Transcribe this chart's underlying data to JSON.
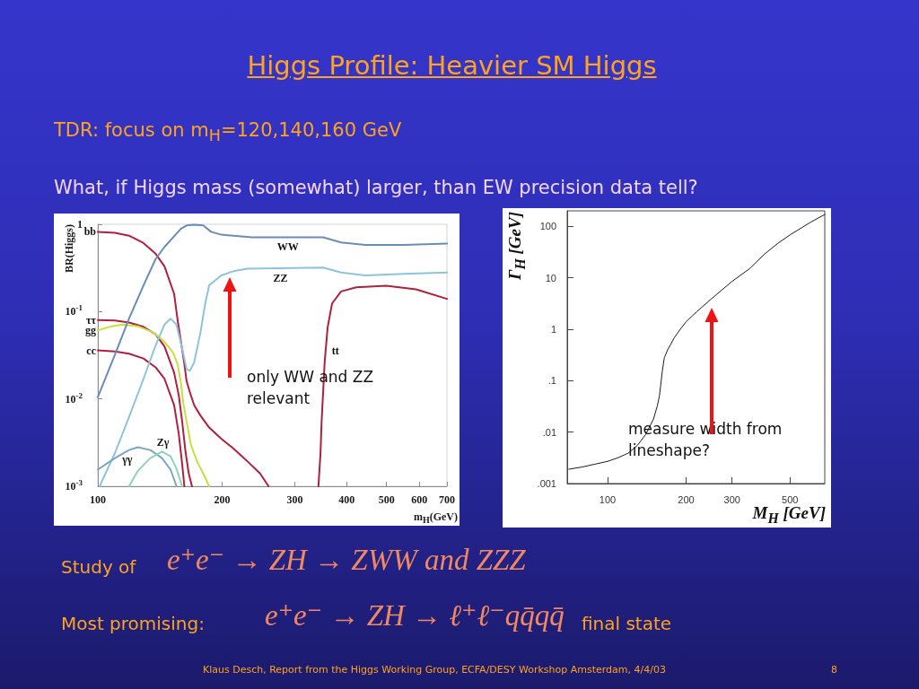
{
  "chart_data": [
    {
      "type": "line",
      "title": "Higgs Profile: Heavier SM Higgs",
      "subtitle": "TDR: focus on m$_{H}$=120,140,160 GeV",
      "xlabel": "m$_{H}$(GeV)",
      "ylabel": "BR(Higgs)",
      "log": "xy",
      "xlim": [
        100,
        700
      ],
      "ylim": [
        0.001,
        1
      ],
      "xticks": [
        100,
        200,
        300,
        400,
        500,
        600,
        700
      ],
      "yticks": [
        {
          "value": 0.001,
          "label": "10$^{-3}$"
        },
        {
          "value": 0.01,
          "label": "10$^{-2}$"
        },
        {
          "value": 0.1,
          "label": "10$^{-1}$"
        },
        1
      ],
      "series": [
        {
          "name": "bb",
          "color": "#b0203c",
          "x": [
            100,
            110,
            119,
            129,
            138,
            145,
            153,
            156,
            159,
            162,
            164,
            167,
            171,
            177,
            186,
            199,
            213,
            231,
            247,
            259
          ],
          "values": [
            0.82,
            0.8,
            0.74,
            0.61,
            0.46,
            0.33,
            0.16,
            0.08,
            0.045,
            0.025,
            0.016,
            0.012,
            0.0085,
            0.0065,
            0.0047,
            0.0035,
            0.0027,
            0.0019,
            0.0014,
            0.001
          ]
        },
        {
          "name": "ττ",
          "color": "#b0203c",
          "x": [
            100,
            110,
            119,
            129,
            138,
            145,
            153,
            157,
            160,
            163,
            166,
            169
          ],
          "values": [
            0.08,
            0.079,
            0.075,
            0.067,
            0.055,
            0.04,
            0.02,
            0.011,
            0.0055,
            0.0025,
            0.0014,
            0.001
          ]
        },
        {
          "name": "gg",
          "color": "#c8e03c",
          "x": [
            100,
            108,
            115,
            125,
            136,
            145,
            152,
            156,
            159,
            161,
            164,
            168,
            174,
            180,
            186
          ],
          "values": [
            0.061,
            0.068,
            0.071,
            0.068,
            0.058,
            0.045,
            0.034,
            0.025,
            0.015,
            0.009,
            0.0055,
            0.003,
            0.0019,
            0.0014,
            0.001
          ]
        },
        {
          "name": "cc",
          "color": "#b0203c",
          "x": [
            100,
            110,
            119,
            129,
            138,
            145,
            153,
            157,
            160,
            162
          ],
          "values": [
            0.036,
            0.035,
            0.033,
            0.029,
            0.023,
            0.017,
            0.0085,
            0.004,
            0.0018,
            0.001
          ]
        },
        {
          "name": "WW",
          "color": "#6a8cb8",
          "x": [
            100,
            110,
            119,
            129,
            138,
            145,
            153,
            159,
            164,
            171,
            180,
            188,
            199,
            236,
            351,
            388,
            444,
            551,
            700
          ],
          "values": [
            0.0105,
            0.032,
            0.083,
            0.2,
            0.4,
            0.55,
            0.73,
            0.89,
            0.97,
            0.99,
            0.97,
            0.82,
            0.76,
            0.71,
            0.71,
            0.62,
            0.58,
            0.58,
            0.6
          ]
        },
        {
          "name": "ZZ",
          "color": "#8cc4de",
          "x": [
            101,
            110,
            119,
            129,
            138,
            145,
            150,
            155,
            160,
            164,
            167,
            171,
            177,
            182,
            186,
            199,
            213,
            230,
            351,
            388,
            444,
            550,
            700
          ],
          "values": [
            0.001,
            0.0024,
            0.0062,
            0.017,
            0.041,
            0.071,
            0.083,
            0.071,
            0.038,
            0.022,
            0.021,
            0.026,
            0.056,
            0.124,
            0.2,
            0.26,
            0.29,
            0.31,
            0.32,
            0.28,
            0.26,
            0.27,
            0.28
          ]
        },
        {
          "name": "tt",
          "color": "#b0203c",
          "x": [
            342,
            346,
            348,
            354,
            360,
            369,
            388,
            422,
            499,
            589,
            700
          ],
          "values": [
            0.001,
            0.0024,
            0.0053,
            0.026,
            0.066,
            0.124,
            0.17,
            0.19,
            0.198,
            0.18,
            0.14
          ]
        },
        {
          "name": "γγ",
          "color": "#7aa6c4",
          "x": [
            100,
            110,
            119,
            125,
            134,
            143,
            150,
            154,
            155
          ],
          "values": [
            0.00155,
            0.0021,
            0.0026,
            0.0028,
            0.0026,
            0.0021,
            0.00155,
            0.0011,
            0.001
          ]
        },
        {
          "name": "Zγ",
          "color": "#8fd4b4",
          "x": [
            119,
            125,
            134,
            143,
            150,
            155,
            160
          ],
          "values": [
            0.001,
            0.0015,
            0.0021,
            0.0025,
            0.0022,
            0.0016,
            0.001
          ]
        }
      ],
      "annotations": [
        "What, if Higgs mass (somewhat) larger, than EW precision data tell?",
        "only WW and ZZ relevant",
        "Study of",
        "e⁺e⁻ → ZH → ZWW and ZZZ",
        "Most promising:",
        "e⁺e⁻ → ZH → ℓ⁺ℓ⁻qq̄qq̄",
        "final state",
        "Klaus Desch, Report from the Higgs Working Group, ECFA/DESY Workshop Amsterdam, 4/4/03",
        "8"
      ]
    },
    {
      "type": "line",
      "xlabel": "M$_{H}$ [GeV]",
      "ylabel": "Γ$_{H}$ [GeV]",
      "log": "xy",
      "xlim": [
        70,
        680
      ],
      "ylim": [
        0.001,
        200
      ],
      "xticks": [
        100,
        200,
        300,
        500
      ],
      "yticks": [
        {
          "value": 0.001,
          "label": ".001"
        },
        {
          "value": 0.01,
          "label": ".01"
        },
        {
          "value": 0.1,
          "label": ".1"
        },
        1,
        10,
        100
      ],
      "series": [
        {
          "color": "#1a1a1a",
          "x": [
            71,
            80,
            90,
            100,
            110,
            120,
            130,
            140,
            150,
            155,
            158,
            162,
            165,
            170,
            175,
            180,
            190,
            200,
            220,
            250,
            300,
            350,
            400,
            450,
            500,
            600,
            680
          ],
          "values": [
            0.0019,
            0.0021,
            0.0024,
            0.0027,
            0.0032,
            0.0039,
            0.0055,
            0.009,
            0.018,
            0.032,
            0.05,
            0.15,
            0.28,
            0.4,
            0.52,
            0.68,
            1,
            1.4,
            2.2,
            3.9,
            8.5,
            15,
            29,
            47,
            68,
            120,
            170
          ]
        }
      ],
      "annotations": [
        "measure width from lineshape?"
      ]
    }
  ]
}
